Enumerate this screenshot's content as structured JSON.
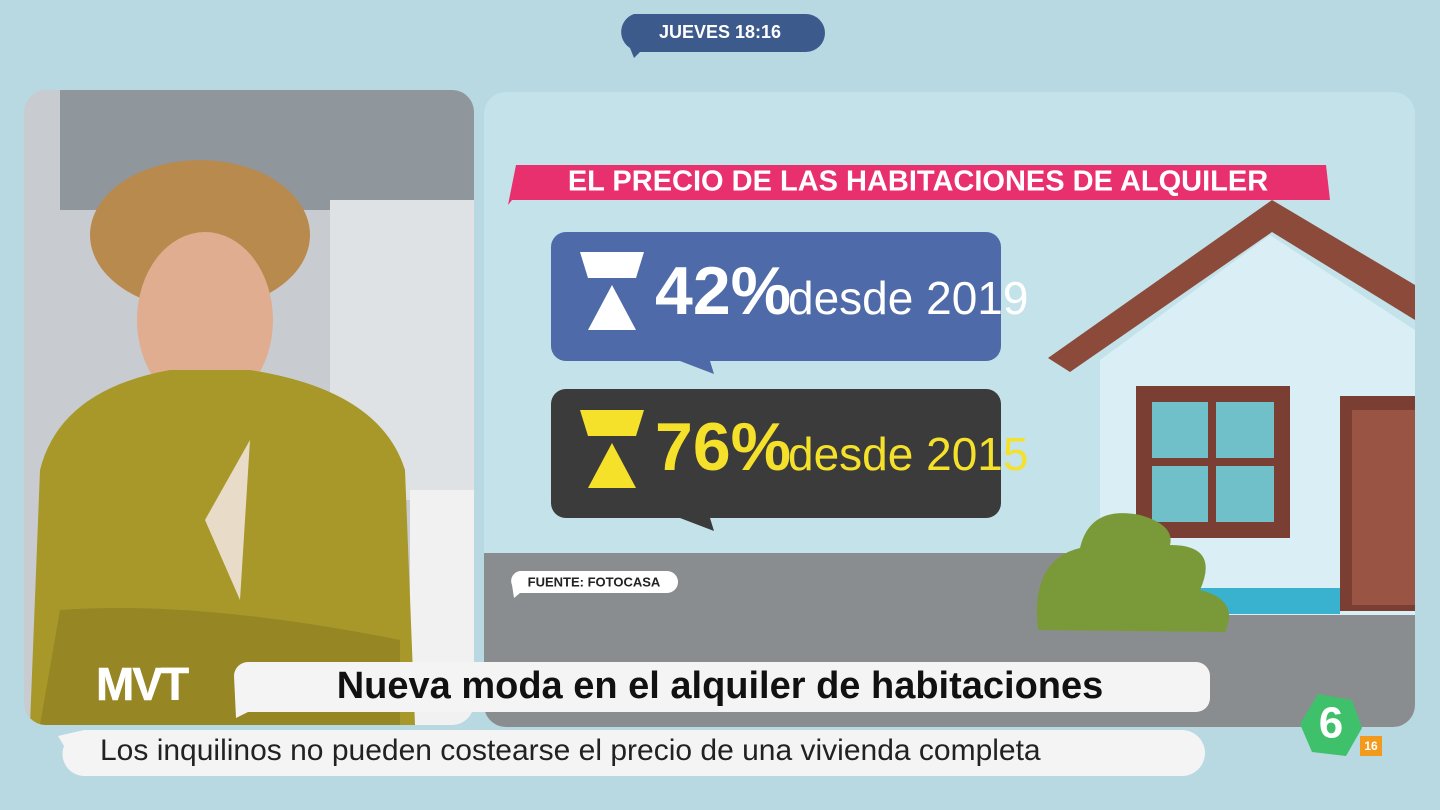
{
  "clock": "JUEVES 18:16",
  "graphic": {
    "title": "EL PRECIO DE LAS HABITACIONES DE ALQUILER",
    "stats": [
      {
        "value": "42%",
        "label": "desde 2019"
      },
      {
        "value": "76%",
        "label": "desde 2015"
      }
    ],
    "source": "FUENTE: FOTOCASA"
  },
  "logo": "MVT",
  "headline": "Nueva moda en el alquiler de habitaciones",
  "subheadline": "Los inquilinos no pueden costearse el precio de una vivienda completa",
  "channel": {
    "name": "6",
    "rating": "16"
  }
}
